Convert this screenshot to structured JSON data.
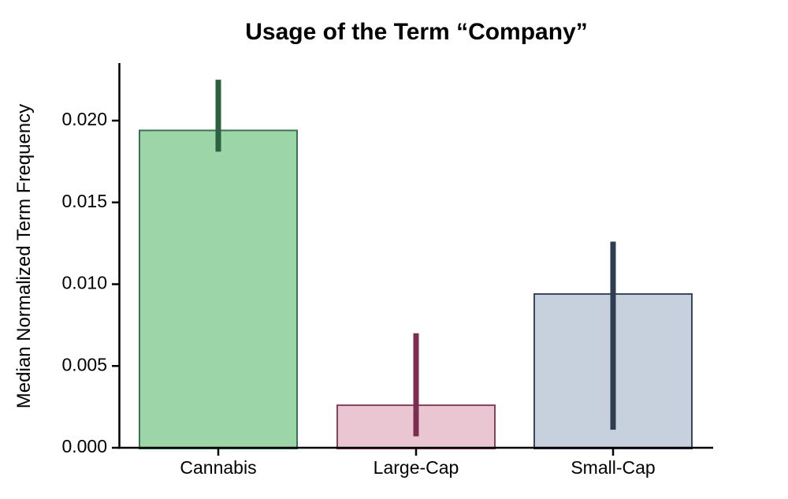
{
  "chart_data": {
    "type": "bar",
    "title": "Usage of the Term “Company”",
    "xlabel": "",
    "ylabel": "Median Normalized Term Frequency",
    "categories": [
      "Cannabis",
      "Large-Cap",
      "Small-Cap"
    ],
    "values": [
      0.0194,
      0.0026,
      0.0094
    ],
    "error_low": [
      0.0181,
      0.0007,
      0.0011
    ],
    "error_high": [
      0.0225,
      0.007,
      0.0126
    ],
    "yticks": [
      0.0,
      0.005,
      0.01,
      0.015,
      0.02
    ],
    "ytick_labels": [
      "0.000",
      "0.005",
      "0.010",
      "0.015",
      "0.020"
    ],
    "ylim": [
      0,
      0.0235
    ],
    "grid": false,
    "legend": null,
    "bar_styles": [
      {
        "fill": "#9bd5a8",
        "edge": "#3e7153",
        "error_color": "#2d5f41"
      },
      {
        "fill": "#eac6d3",
        "edge": "#864360",
        "error_color": "#7d2d50"
      },
      {
        "fill": "#c7d1de",
        "edge": "#374760",
        "error_color": "#2e3d50"
      }
    ]
  },
  "style": {
    "background": "#ffffff",
    "axis_color": "#000000",
    "text_color": "#000000"
  }
}
